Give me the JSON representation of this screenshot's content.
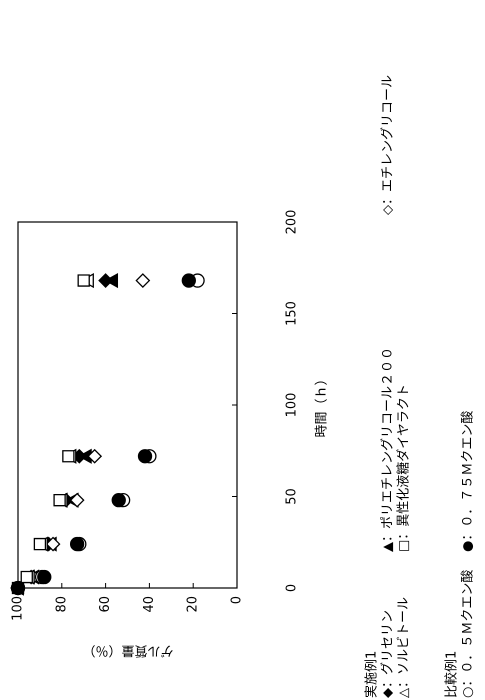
{
  "chart_data": {
    "type": "scatter",
    "x_label": "時間（ｈ）",
    "y_label": "ゲル質量（％）",
    "x": [
      0,
      6,
      24,
      48,
      72,
      168
    ],
    "xlim": [
      0,
      200
    ],
    "xticks": [
      0,
      50,
      100,
      150,
      200
    ],
    "ylim": [
      0,
      100
    ],
    "yticks": [
      0,
      20,
      40,
      60,
      80,
      100
    ],
    "legend_headings": [
      "実施例1",
      "比較例1"
    ],
    "series": [
      {
        "name": "◆：グリセリン",
        "marker": "diamond",
        "filled": true,
        "color": "#000000",
        "values": [
          100,
          94,
          86,
          78,
          72,
          60
        ]
      },
      {
        "name": "▲：ポリエチレングリコール２００",
        "marker": "triangle",
        "filled": true,
        "color": "#000000",
        "values": [
          100,
          93,
          85,
          75,
          69,
          57
        ]
      },
      {
        "name": "◇：エチレングリコール",
        "marker": "diamond",
        "filled": false,
        "color": "#000000",
        "values": [
          100,
          93,
          84,
          73,
          65,
          43
        ]
      },
      {
        "name": "△：ソルビトール",
        "marker": "triangle",
        "filled": false,
        "color": "#000000",
        "values": [
          100,
          95,
          89,
          80,
          76,
          68
        ]
      },
      {
        "name": "□：異性化液糖ダイヤラクト",
        "marker": "square",
        "filled": false,
        "color": "#000000",
        "values": [
          100,
          96,
          90,
          81,
          77,
          70
        ]
      },
      {
        "name": "○：０．５Ｍクエン酸",
        "marker": "circle",
        "filled": false,
        "color": "#000000",
        "values": [
          100,
          89,
          72,
          52,
          40,
          18
        ]
      },
      {
        "name": "●：０．７５Ｍクエン酸",
        "marker": "circle",
        "filled": true,
        "color": "#000000",
        "values": [
          100,
          88,
          73,
          54,
          42,
          22
        ]
      }
    ]
  }
}
